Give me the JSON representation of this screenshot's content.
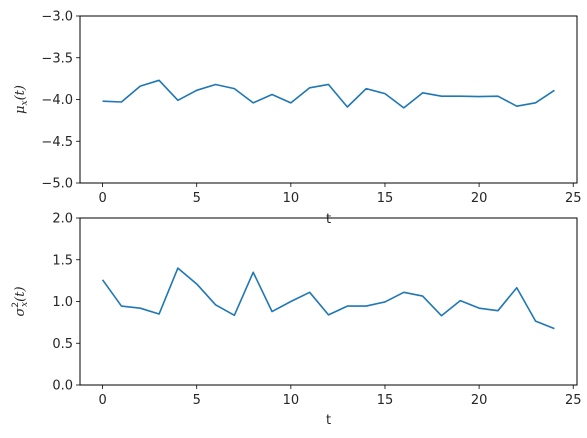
{
  "chart_data": [
    {
      "type": "line",
      "xlabel": "t",
      "ylabel": "μ",
      "ylabel_sub": "x",
      "ylabel_suffix": "(t)",
      "xlim": [
        -1.2,
        25.2
      ],
      "ylim": [
        -5.0,
        -3.0
      ],
      "xticks": [
        0,
        5,
        10,
        15,
        20,
        25
      ],
      "yticks": [
        -5.0,
        -4.5,
        -4.0,
        -3.5,
        -3.0
      ],
      "ytick_labels": [
        "−5.0",
        "−4.5",
        "−4.0",
        "−3.5",
        "−3.0"
      ],
      "grid": false,
      "series": [
        {
          "color": "#1f77b4",
          "x": [
            0,
            1,
            2,
            3,
            4,
            5,
            6,
            7,
            8,
            9,
            10,
            11,
            12,
            13,
            14,
            15,
            16,
            17,
            18,
            19,
            20,
            21,
            22,
            23,
            24
          ],
          "y": [
            -4.02,
            -4.03,
            -3.84,
            -3.77,
            -4.01,
            -3.89,
            -3.82,
            -3.87,
            -4.04,
            -3.94,
            -4.04,
            -3.86,
            -3.82,
            -4.09,
            -3.87,
            -3.93,
            -4.1,
            -3.92,
            -3.96,
            -3.96,
            -3.965,
            -3.96,
            -4.08,
            -4.04,
            -3.89
          ]
        }
      ]
    },
    {
      "type": "line",
      "xlabel": "t",
      "ylabel": "σ",
      "ylabel_sub": "x",
      "ylabel_sup": "2",
      "ylabel_suffix": "(t)",
      "xlim": [
        -1.2,
        25.2
      ],
      "ylim": [
        0.0,
        2.0
      ],
      "xticks": [
        0,
        5,
        10,
        15,
        20,
        25
      ],
      "yticks": [
        0.0,
        0.5,
        1.0,
        1.5,
        2.0
      ],
      "ytick_labels": [
        "0.0",
        "0.5",
        "1.0",
        "1.5",
        "2.0"
      ],
      "grid": false,
      "series": [
        {
          "color": "#1f77b4",
          "x": [
            0,
            1,
            2,
            3,
            4,
            5,
            6,
            7,
            8,
            9,
            10,
            11,
            12,
            13,
            14,
            15,
            16,
            17,
            18,
            19,
            20,
            21,
            22,
            23,
            24
          ],
          "y": [
            1.26,
            0.945,
            0.92,
            0.85,
            1.4,
            1.21,
            0.96,
            0.835,
            1.35,
            0.88,
            1.0,
            1.11,
            0.84,
            0.945,
            0.945,
            0.995,
            1.11,
            1.065,
            0.83,
            1.01,
            0.92,
            0.89,
            1.165,
            0.765,
            0.675
          ]
        }
      ]
    }
  ]
}
